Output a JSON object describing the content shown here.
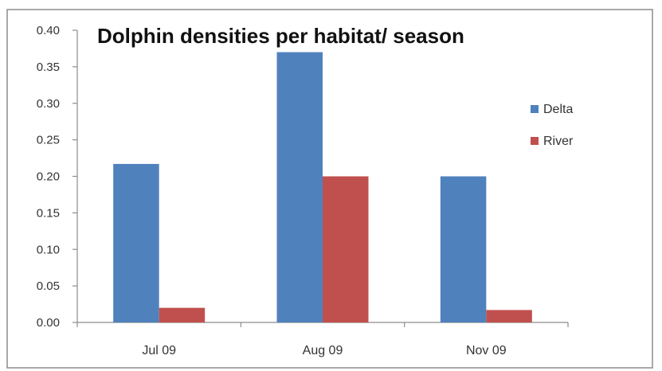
{
  "chart_data": {
    "type": "bar",
    "title": "Dolphin densities per habitat/ season",
    "xlabel": "",
    "ylabel": "",
    "categories": [
      "Jul 09",
      "Aug 09",
      "Nov 09"
    ],
    "series": [
      {
        "name": "Delta",
        "values": [
          0.217,
          0.37,
          0.2
        ],
        "color": "#4f81bd"
      },
      {
        "name": "River",
        "values": [
          0.02,
          0.2,
          0.017
        ],
        "color": "#c0504d"
      }
    ],
    "ylim": [
      0,
      0.4
    ],
    "yticks": [
      "0.00",
      "0.05",
      "0.10",
      "0.15",
      "0.20",
      "0.25",
      "0.30",
      "0.35",
      "0.40"
    ],
    "grid": false,
    "legend": "right"
  }
}
